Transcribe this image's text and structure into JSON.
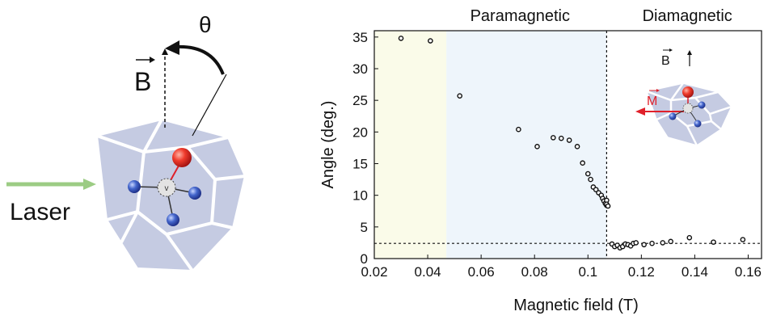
{
  "schematic": {
    "laser_label": "Laser",
    "field_label": "B",
    "angle_label": "θ"
  },
  "chart_data": {
    "type": "scatter",
    "title": "",
    "xlabel": "Magnetic field (T)",
    "ylabel": "Angle (deg.)",
    "xlim": [
      0.02,
      0.165
    ],
    "ylim": [
      0,
      36
    ],
    "xticks": [
      0.02,
      0.04,
      0.06,
      0.08,
      0.1,
      0.12,
      0.14,
      0.16
    ],
    "xtick_labels": [
      "0.02",
      "0.04",
      "0.06",
      "0.08",
      "0.1",
      "0.12",
      "0.14",
      "0.16"
    ],
    "yticks": [
      0,
      5,
      10,
      15,
      20,
      25,
      30,
      35
    ],
    "ytick_labels": [
      "0",
      "5",
      "10",
      "15",
      "20",
      "25",
      "30",
      "35"
    ],
    "grid": false,
    "regions": [
      {
        "label": "",
        "x": [
          0.02,
          0.047
        ],
        "color": "#fafbe9"
      },
      {
        "label": "Paramagnetic",
        "x": [
          0.047,
          0.107
        ],
        "color": "#eef5fb"
      },
      {
        "label": "Diamagnetic",
        "x": [
          0.107,
          0.165
        ],
        "color": "#ffffff"
      }
    ],
    "transition_x": 0.107,
    "baseline_y": 2.4,
    "inset_labels": {
      "field": "B",
      "moment": "M"
    },
    "colors": {
      "moment": "#e0202a",
      "marker_edge": "#111111"
    },
    "series": [
      {
        "x": [
          0.03,
          0.041,
          0.052,
          0.074,
          0.081,
          0.087,
          0.09,
          0.093,
          0.096,
          0.098,
          0.1,
          0.101,
          0.102,
          0.103,
          0.104,
          0.105,
          0.1055,
          0.106,
          0.1065,
          0.107,
          0.107,
          0.107,
          0.1075,
          0.109,
          0.11,
          0.111,
          0.112,
          0.113,
          0.114,
          0.115,
          0.116,
          0.117,
          0.118,
          0.121,
          0.124,
          0.128,
          0.131,
          0.138,
          0.147,
          0.158
        ],
        "y": [
          34.8,
          34.4,
          25.7,
          20.4,
          17.7,
          19.1,
          19.0,
          18.7,
          17.7,
          15.1,
          13.4,
          12.5,
          11.3,
          10.9,
          10.4,
          10.0,
          9.5,
          9.1,
          8.7,
          9.2,
          8.4,
          8.6,
          8.3,
          2.3,
          1.9,
          2.1,
          1.7,
          1.9,
          2.3,
          2.2,
          2.0,
          2.4,
          2.5,
          2.2,
          2.4,
          2.5,
          2.7,
          3.3,
          2.6,
          3.0
        ]
      }
    ]
  }
}
